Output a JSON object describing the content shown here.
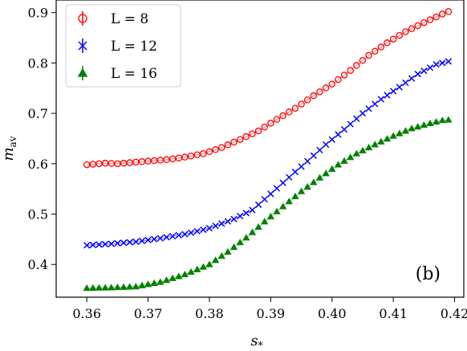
{
  "chart_data": {
    "type": "scatter",
    "title": "",
    "xlabel": "s",
    "xlabel_sub": "*",
    "ylabel": "m",
    "ylabel_sub": "av",
    "xlim": [
      0.355,
      0.4215
    ],
    "ylim": [
      0.335,
      0.925
    ],
    "xticks": [
      0.36,
      0.37,
      0.38,
      0.39,
      0.4,
      0.41,
      0.42
    ],
    "xtick_labels": [
      "0.36",
      "0.37",
      "0.38",
      "0.39",
      "0.40",
      "0.41",
      "0.42"
    ],
    "yticks": [
      0.4,
      0.5,
      0.6,
      0.7,
      0.8,
      0.9
    ],
    "ytick_labels": [
      "0.4",
      "0.5",
      "0.6",
      "0.7",
      "0.8",
      "0.9"
    ],
    "grid": false,
    "legend_position": "top-left",
    "annotation": "(b)",
    "series": [
      {
        "name": "L = 8",
        "marker": "circle",
        "color": "#ff0000",
        "anchors": [
          [
            0.36,
            0.598
          ],
          [
            0.363,
            0.601
          ],
          [
            0.365,
            0.6
          ],
          [
            0.368,
            0.603
          ],
          [
            0.37,
            0.605
          ],
          [
            0.373,
            0.608
          ],
          [
            0.376,
            0.613
          ],
          [
            0.379,
            0.62
          ],
          [
            0.382,
            0.632
          ],
          [
            0.385,
            0.648
          ],
          [
            0.388,
            0.665
          ],
          [
            0.391,
            0.688
          ],
          [
            0.394,
            0.71
          ],
          [
            0.397,
            0.735
          ],
          [
            0.4,
            0.758
          ],
          [
            0.403,
            0.785
          ],
          [
            0.406,
            0.815
          ],
          [
            0.409,
            0.84
          ],
          [
            0.412,
            0.862
          ],
          [
            0.415,
            0.88
          ],
          [
            0.418,
            0.897
          ],
          [
            0.419,
            0.902
          ]
        ]
      },
      {
        "name": "L = 12",
        "marker": "x",
        "color": "#0000ff",
        "anchors": [
          [
            0.36,
            0.438
          ],
          [
            0.364,
            0.441
          ],
          [
            0.368,
            0.445
          ],
          [
            0.372,
            0.452
          ],
          [
            0.376,
            0.46
          ],
          [
            0.38,
            0.472
          ],
          [
            0.384,
            0.49
          ],
          [
            0.387,
            0.508
          ],
          [
            0.39,
            0.54
          ],
          [
            0.393,
            0.573
          ],
          [
            0.396,
            0.605
          ],
          [
            0.399,
            0.638
          ],
          [
            0.402,
            0.668
          ],
          [
            0.405,
            0.7
          ],
          [
            0.408,
            0.728
          ],
          [
            0.411,
            0.752
          ],
          [
            0.414,
            0.778
          ],
          [
            0.417,
            0.797
          ],
          [
            0.419,
            0.803
          ]
        ]
      },
      {
        "name": "L = 16",
        "marker": "triangle",
        "color": "#008000",
        "anchors": [
          [
            0.36,
            0.353
          ],
          [
            0.364,
            0.354
          ],
          [
            0.368,
            0.356
          ],
          [
            0.372,
            0.365
          ],
          [
            0.376,
            0.38
          ],
          [
            0.38,
            0.4
          ],
          [
            0.383,
            0.425
          ],
          [
            0.386,
            0.453
          ],
          [
            0.389,
            0.485
          ],
          [
            0.392,
            0.515
          ],
          [
            0.395,
            0.545
          ],
          [
            0.398,
            0.572
          ],
          [
            0.401,
            0.598
          ],
          [
            0.404,
            0.62
          ],
          [
            0.407,
            0.638
          ],
          [
            0.41,
            0.655
          ],
          [
            0.413,
            0.67
          ],
          [
            0.416,
            0.68
          ],
          [
            0.418,
            0.686
          ],
          [
            0.419,
            0.687
          ]
        ]
      }
    ]
  }
}
